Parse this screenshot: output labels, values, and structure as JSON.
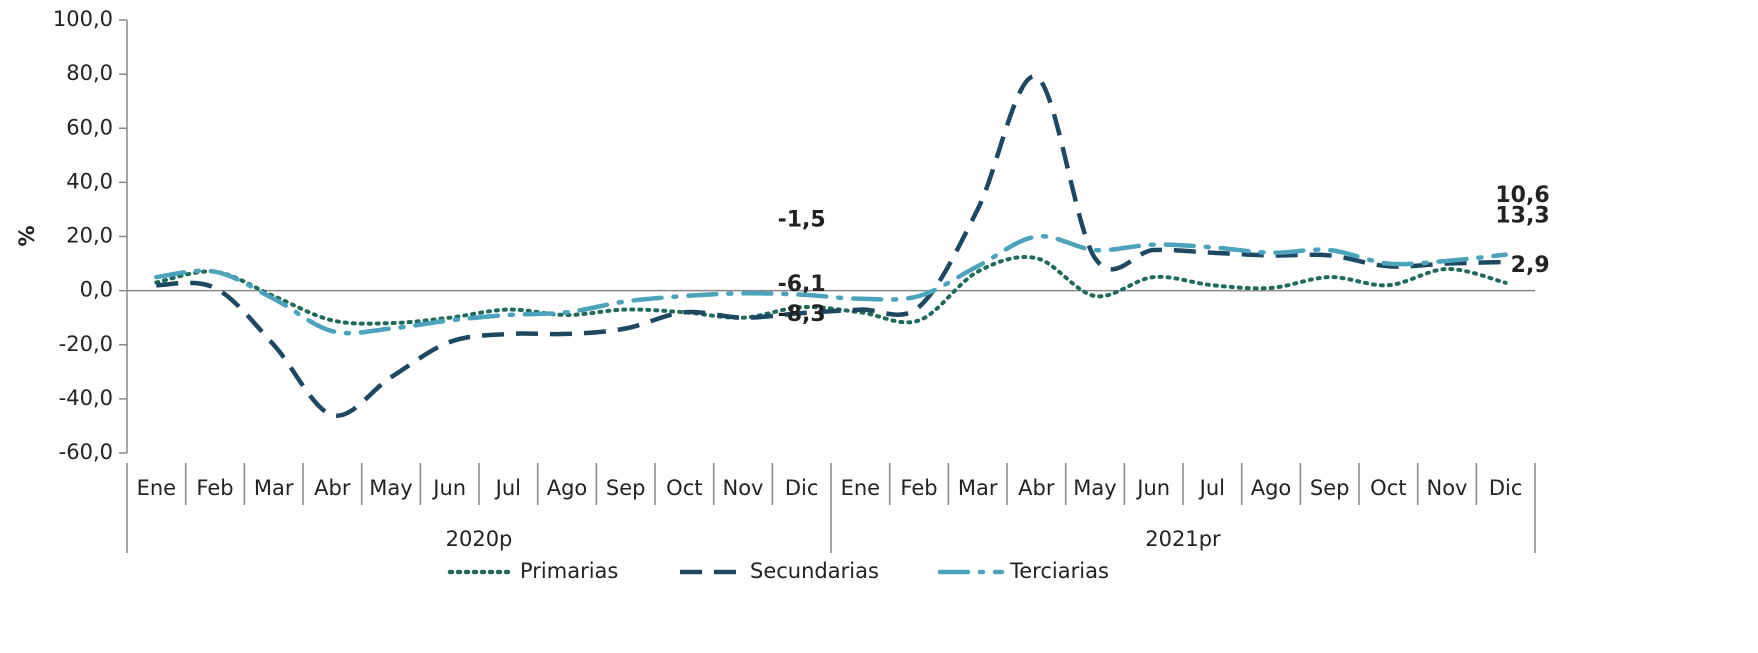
{
  "chart_data": {
    "type": "line",
    "y_label": "%",
    "categories": [
      "Ene",
      "Feb",
      "Mar",
      "Abr",
      "May",
      "Jun",
      "Jul",
      "Ago",
      "Sep",
      "Oct",
      "Nov",
      "Dic",
      "Ene",
      "Feb",
      "Mar",
      "Abr",
      "May",
      "Jun",
      "Jul",
      "Ago",
      "Sep",
      "Oct",
      "Nov",
      "Dic"
    ],
    "category_groups": [
      "2020p",
      "2021pr"
    ],
    "series": [
      {
        "name": "Primarias",
        "color": "#1e6b5c",
        "dash": "dotted",
        "values": [
          3,
          7,
          -2,
          -11,
          -12,
          -10,
          -7,
          -9,
          -7,
          -8,
          -10,
          -6.1,
          -8,
          -11,
          7,
          12,
          -2,
          5,
          2,
          1,
          5,
          2,
          8,
          2.9
        ],
        "value_labels": [
          null,
          null,
          null,
          null,
          null,
          null,
          null,
          null,
          null,
          null,
          null,
          "-6,1",
          null,
          null,
          null,
          null,
          null,
          null,
          null,
          null,
          null,
          null,
          null,
          "2,9"
        ]
      },
      {
        "name": "Secundarias",
        "color": "#1d4862",
        "dash": "dashed",
        "values": [
          2,
          1,
          -20,
          -46,
          -32,
          -19,
          -16,
          -16,
          -14,
          -8,
          -10,
          -8.3,
          -7,
          -6,
          30,
          79,
          12,
          15,
          14,
          13,
          13,
          9,
          10,
          10.6
        ],
        "value_labels": [
          null,
          null,
          null,
          null,
          null,
          null,
          null,
          null,
          null,
          null,
          null,
          "-8,3",
          null,
          null,
          null,
          null,
          null,
          null,
          null,
          null,
          null,
          null,
          null,
          "10,6"
        ]
      },
      {
        "name": "Terciarias",
        "color": "#4ba3bd",
        "dash": "dashdot",
        "values": [
          5,
          7,
          -3,
          -15,
          -14,
          -11,
          -9,
          -8,
          -4,
          -2,
          -1,
          -1.5,
          -3,
          -2,
          9,
          20,
          15,
          17,
          16,
          14,
          15,
          10,
          11,
          13.3
        ],
        "value_labels": [
          null,
          null,
          null,
          null,
          null,
          null,
          null,
          null,
          null,
          null,
          null,
          "-1,5",
          null,
          null,
          null,
          null,
          null,
          null,
          null,
          null,
          null,
          null,
          null,
          "13,3"
        ]
      }
    ],
    "ylim": [
      -60,
      100
    ],
    "yticks": [
      {
        "value": -60,
        "label": "-60,0"
      },
      {
        "value": -40,
        "label": "-40,0"
      },
      {
        "value": -20,
        "label": "-20,0"
      },
      {
        "value": 0,
        "label": "0,0"
      },
      {
        "value": 20,
        "label": "20,0"
      },
      {
        "value": 40,
        "label": "40,0"
      },
      {
        "value": 60,
        "label": "60,0"
      },
      {
        "value": 80,
        "label": "80,0"
      },
      {
        "value": 100,
        "label": "100,0"
      }
    ],
    "legend": "bottom"
  }
}
